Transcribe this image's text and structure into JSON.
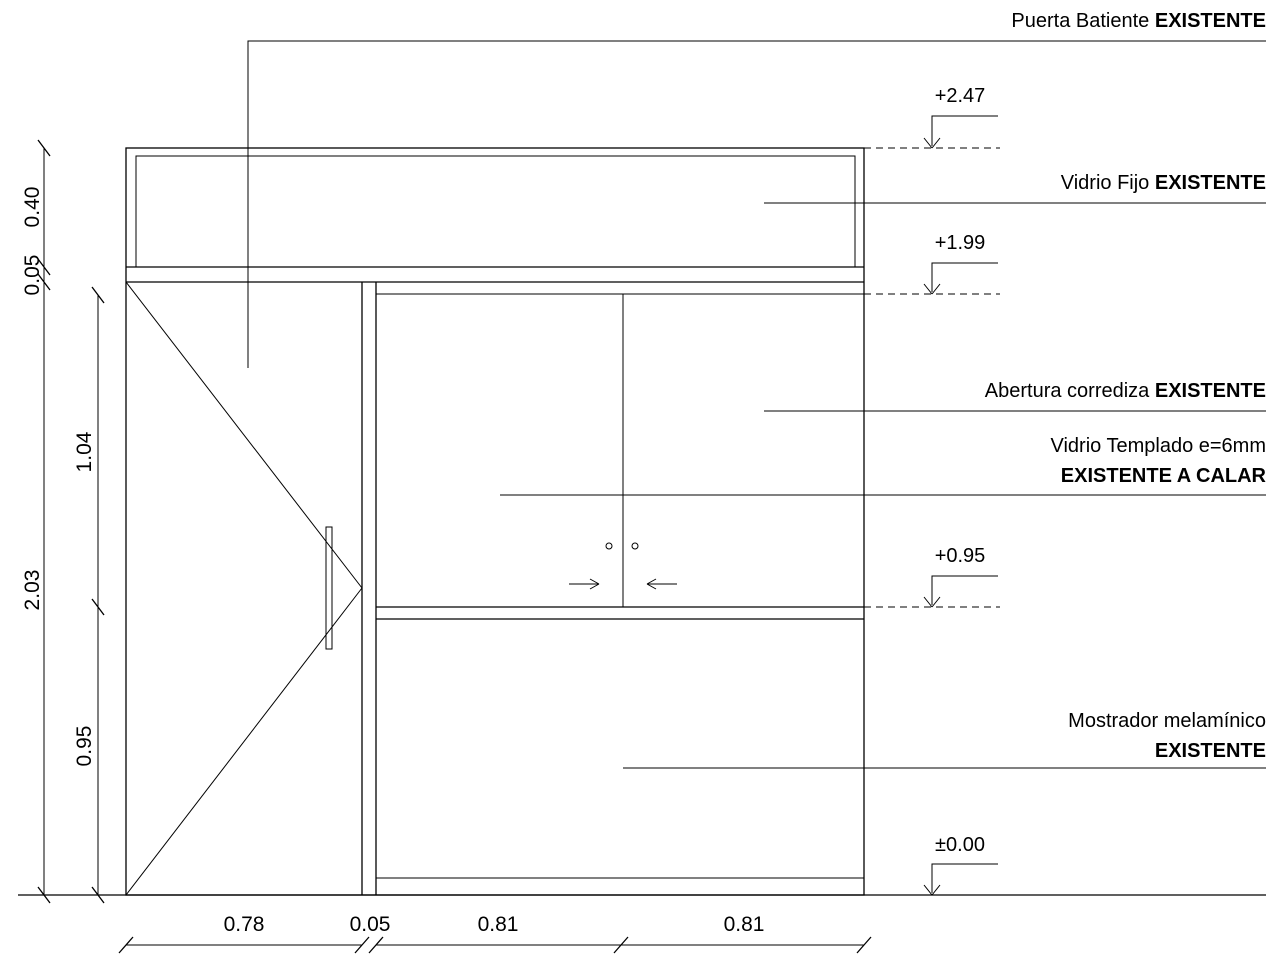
{
  "labels": {
    "puerta": {
      "text": "Puerta Batiente ",
      "bold": "EXISTENTE"
    },
    "vidrio_fijo": {
      "text": "Vidrio Fijo ",
      "bold": "EXISTENTE"
    },
    "abertura": {
      "text": "Abertura corrediza ",
      "bold": "EXISTENTE"
    },
    "vidrio_templado": {
      "line1": "Vidrio Templado e=6mm",
      "line2": "EXISTENTE A CALAR"
    },
    "mostrador": {
      "line1": "Mostrador melamínico",
      "line2": "EXISTENTE"
    }
  },
  "levels": {
    "top": "+2.47",
    "transom": "+1.99",
    "counter": "+0.95",
    "floor": "±0.00"
  },
  "dimensions": {
    "vertical": {
      "d040": "0.40",
      "d005": "0.05",
      "d203": "2.03",
      "d104": "1.04",
      "d095": "0.95"
    },
    "horizontal": {
      "d078": "0.78",
      "d005": "0.05",
      "d081a": "0.81",
      "d081b": "0.81"
    }
  }
}
